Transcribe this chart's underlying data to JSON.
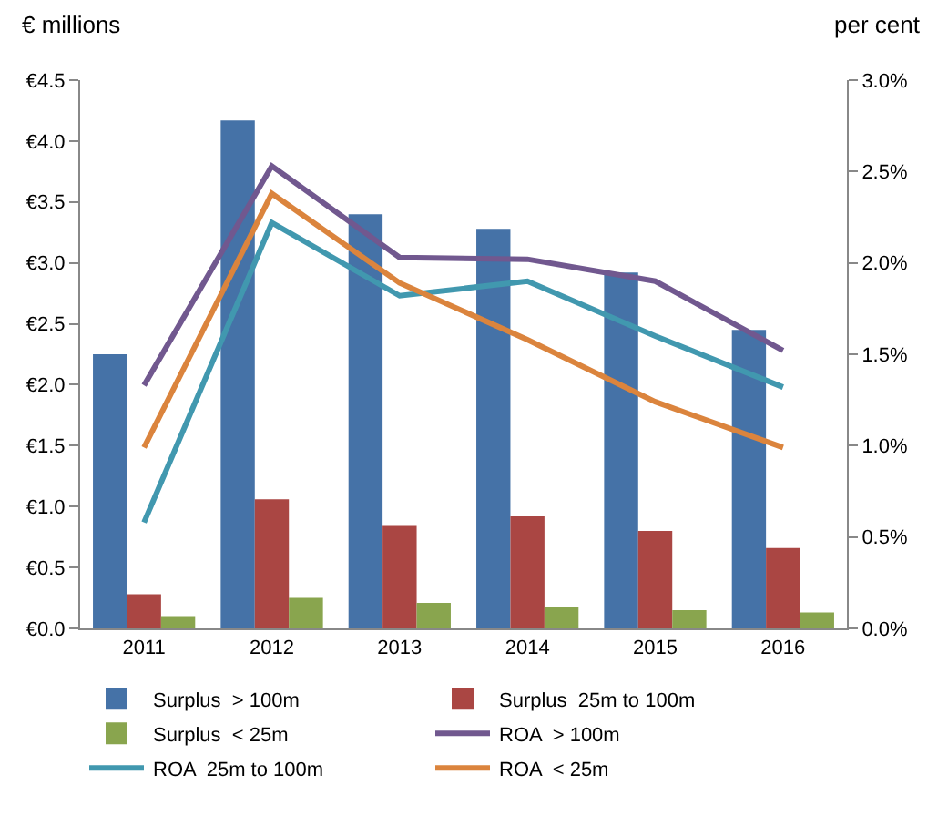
{
  "chart_data": {
    "type": "bar",
    "ylabel": "€ millions",
    "y2label": "per cent",
    "categories": [
      "2011",
      "2012",
      "2013",
      "2014",
      "2015",
      "2016"
    ],
    "series": [
      {
        "name": "Surplus  > 100m",
        "color": "#4572a7",
        "values": [
          2.25,
          4.17,
          3.4,
          3.28,
          2.92,
          2.45
        ]
      },
      {
        "name": "Surplus  25m to 100m",
        "color": "#aa4643",
        "values": [
          0.28,
          1.06,
          0.84,
          0.92,
          0.8,
          0.66
        ]
      },
      {
        "name": "Surplus  < 25m",
        "color": "#89a54e",
        "values": [
          0.1,
          0.25,
          0.21,
          0.18,
          0.15,
          0.13
        ]
      },
      {
        "name": "ROA  > 100m",
        "type": "line",
        "axis": "y2",
        "color": "#71588f",
        "values": [
          1.33,
          2.53,
          2.03,
          2.02,
          1.9,
          1.52
        ]
      },
      {
        "name": "ROA  25m to 100m",
        "type": "line",
        "axis": "y2",
        "color": "#4198af",
        "values": [
          0.58,
          2.22,
          1.82,
          1.9,
          1.6,
          1.32
        ]
      },
      {
        "name": "ROA  < 25m",
        "type": "line",
        "axis": "y2",
        "color": "#db843d",
        "values": [
          0.99,
          2.38,
          1.89,
          1.58,
          1.24,
          0.99
        ]
      }
    ],
    "ylim": [
      0,
      4.5
    ],
    "yticks": [
      {
        "value": 0,
        "label": "€0.0"
      },
      {
        "value": 0.5,
        "label": "€0.5"
      },
      {
        "value": 1,
        "label": "€1.0"
      },
      {
        "value": 1.5,
        "label": "€1.5"
      },
      {
        "value": 2,
        "label": "€2.0"
      },
      {
        "value": 2.5,
        "label": "€2.5"
      },
      {
        "value": 3,
        "label": "€3.0"
      },
      {
        "value": 3.5,
        "label": "€3.5"
      },
      {
        "value": 4,
        "label": "€4.0"
      },
      {
        "value": 4.5,
        "label": "€4.5"
      }
    ],
    "y2lim": [
      0,
      3.0
    ],
    "y2ticks": [
      {
        "value": 0,
        "label": "0.0%"
      },
      {
        "value": 0.5,
        "label": "0.5%"
      },
      {
        "value": 1,
        "label": "1.0%"
      },
      {
        "value": 1.5,
        "label": "1.5%"
      },
      {
        "value": 2,
        "label": "2.0%"
      },
      {
        "value": 2.5,
        "label": "2.5%"
      },
      {
        "value": 3,
        "label": "3.0%"
      }
    ],
    "legend": "bottom",
    "marker": "none",
    "line_style": "solid"
  }
}
